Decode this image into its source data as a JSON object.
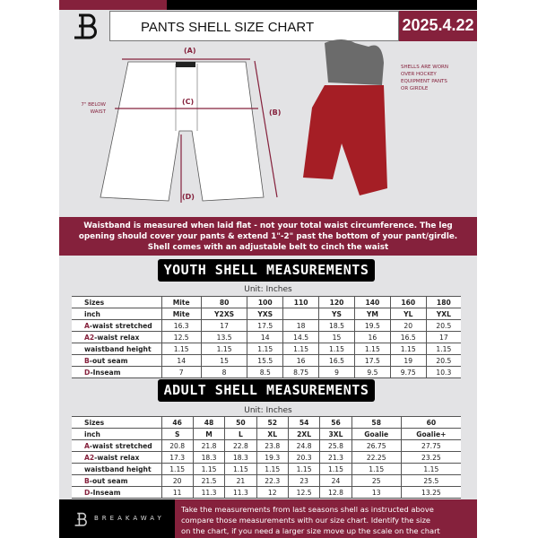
{
  "header": {
    "title": "PANTS SHELL SIZE CHART",
    "date": "2025.4.22"
  },
  "diagram": {
    "label_a": "(A)",
    "label_b": "(B)",
    "label_c": "(C)",
    "label_d": "(D)",
    "below_waist_line1": "7\" BELOW",
    "below_waist_line2": "WAIST",
    "note": [
      "SHELLS ARE WORN",
      "OVER HOCKEY",
      "EQUIPMENT PANTS",
      "OR GIRDLE"
    ]
  },
  "colors": {
    "accent": "#85213c",
    "dark": "#000000",
    "panel": "#e3e3e5"
  },
  "info_band": [
    "Waistband is measured when laid flat - not your total waist circumference. The leg",
    "opening should cover your pants & extend 1\"-2\" past the bottom of your pant/girdle.",
    "Shell comes with an adjustable belt to cinch the waist"
  ],
  "youth": {
    "title": "YOUTH SHELL MEASUREMENTS",
    "unit": "Unit: Inches",
    "rows": [
      {
        "p": "",
        "s": "Sizes",
        "v": [
          "Mite",
          "80",
          "100",
          "110",
          "120",
          "140",
          "160",
          "180"
        ]
      },
      {
        "p": "",
        "s": "inch",
        "v": [
          "Mite",
          "Y2XS",
          "YXS",
          "",
          "YS",
          "YM",
          "YL",
          "YXL"
        ]
      },
      {
        "p": "A",
        "s": "-waist stretched",
        "v": [
          "16.3",
          "17",
          "17.5",
          "18",
          "18.5",
          "19.5",
          "20",
          "20.5"
        ]
      },
      {
        "p": "A2",
        "s": "-waist relax",
        "v": [
          "12.5",
          "13.5",
          "14",
          "14.5",
          "15",
          "16",
          "16.5",
          "17"
        ]
      },
      {
        "p": "",
        "s": "waistband height",
        "v": [
          "1.15",
          "1.15",
          "1.15",
          "1.15",
          "1.15",
          "1.15",
          "1.15",
          "1.15"
        ]
      },
      {
        "p": "B",
        "s": "-out seam",
        "v": [
          "14",
          "15",
          "15.5",
          "16",
          "16.5",
          "17.5",
          "19",
          "20.5"
        ]
      },
      {
        "p": "D",
        "s": "-Inseam",
        "v": [
          "7",
          "8",
          "8.5",
          "8.75",
          "9",
          "9.5",
          "9.75",
          "10.3"
        ]
      }
    ]
  },
  "adult": {
    "title": "ADULT SHELL MEASUREMENTS",
    "unit": "Unit: Inches",
    "rows": [
      {
        "p": "",
        "s": "Sizes",
        "v": [
          "46",
          "48",
          "50",
          "52",
          "54",
          "56",
          "58",
          "60"
        ]
      },
      {
        "p": "",
        "s": "inch",
        "v": [
          "S",
          "M",
          "L",
          "XL",
          "2XL",
          "3XL",
          "Goalie",
          "Goalie+"
        ]
      },
      {
        "p": "A",
        "s": "-waist stretched",
        "v": [
          "20.8",
          "21.8",
          "22.8",
          "23.8",
          "24.8",
          "25.8",
          "26.75",
          "27.75"
        ]
      },
      {
        "p": "A2",
        "s": "-waist relax",
        "v": [
          "17.3",
          "18.3",
          "18.3",
          "19.3",
          "20.3",
          "21.3",
          "22.25",
          "23.25"
        ]
      },
      {
        "p": "",
        "s": "waistband height",
        "v": [
          "1.15",
          "1.15",
          "1.15",
          "1.15",
          "1.15",
          "1.15",
          "1.15",
          "1.15"
        ]
      },
      {
        "p": "B",
        "s": "-out seam",
        "v": [
          "20",
          "21.5",
          "21",
          "22.3",
          "23",
          "24",
          "25",
          "25.5"
        ]
      },
      {
        "p": "D",
        "s": "-Inseam",
        "v": [
          "11",
          "11.3",
          "11.3",
          "12",
          "12.5",
          "12.8",
          "13",
          "13.25"
        ]
      }
    ]
  },
  "footer": {
    "brand": "BREAKAWAY",
    "text": [
      "Take the measurements from last seasons shell as instructed above",
      "compare those measurements  with our size chart. Identify the size",
      "on the chart, if you need a larger size move up the scale on the chart"
    ]
  }
}
